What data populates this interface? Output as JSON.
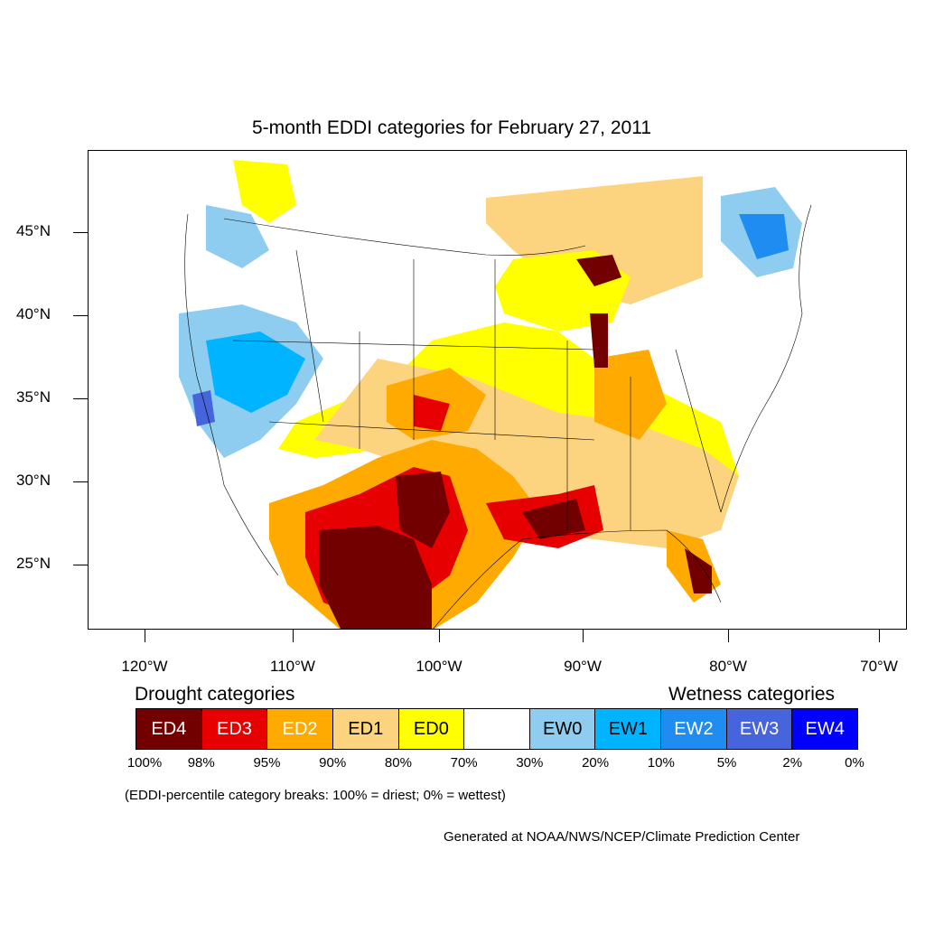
{
  "title": "5-month EDDI categories for February 27, 2011",
  "latitude_labels": [
    "45°N",
    "40°N",
    "35°N",
    "30°N",
    "25°N"
  ],
  "longitude_labels": [
    "120°W",
    "110°W",
    "100°W",
    "90°W",
    "80°W",
    "70°W"
  ],
  "legend": {
    "drought_heading": "Drought categories",
    "wetness_heading": "Wetness categories",
    "categories": [
      {
        "label": "ED4",
        "color": "#730000",
        "text_color": "#ffffff"
      },
      {
        "label": "ED3",
        "color": "#e60000",
        "text_color": "#ffffff"
      },
      {
        "label": "ED2",
        "color": "#ffaa00",
        "text_color": "#ffffff"
      },
      {
        "label": "ED1",
        "color": "#fcd37f",
        "text_color": "#000000"
      },
      {
        "label": "ED0",
        "color": "#ffff00",
        "text_color": "#000000"
      },
      {
        "label": "",
        "color": "#ffffff",
        "text_color": "#000000"
      },
      {
        "label": "EW0",
        "color": "#8fcdf0",
        "text_color": "#000000"
      },
      {
        "label": "EW1",
        "color": "#00b4ff",
        "text_color": "#000000"
      },
      {
        "label": "EW2",
        "color": "#1e8cf0",
        "text_color": "#ffffff"
      },
      {
        "label": "EW3",
        "color": "#4664dc",
        "text_color": "#ffffff"
      },
      {
        "label": "EW4",
        "color": "#0000ff",
        "text_color": "#ffffff"
      }
    ],
    "percentiles": [
      "100%",
      "98%",
      "95%",
      "90%",
      "80%",
      "70%",
      "30%",
      "20%",
      "10%",
      "5%",
      "2%",
      "0%"
    ]
  },
  "category_note": "(EDDI-percentile category breaks: 100% = driest; 0% = wettest)",
  "credit": "Generated at NOAA/NWS/NCEP/Climate Prediction Center"
}
